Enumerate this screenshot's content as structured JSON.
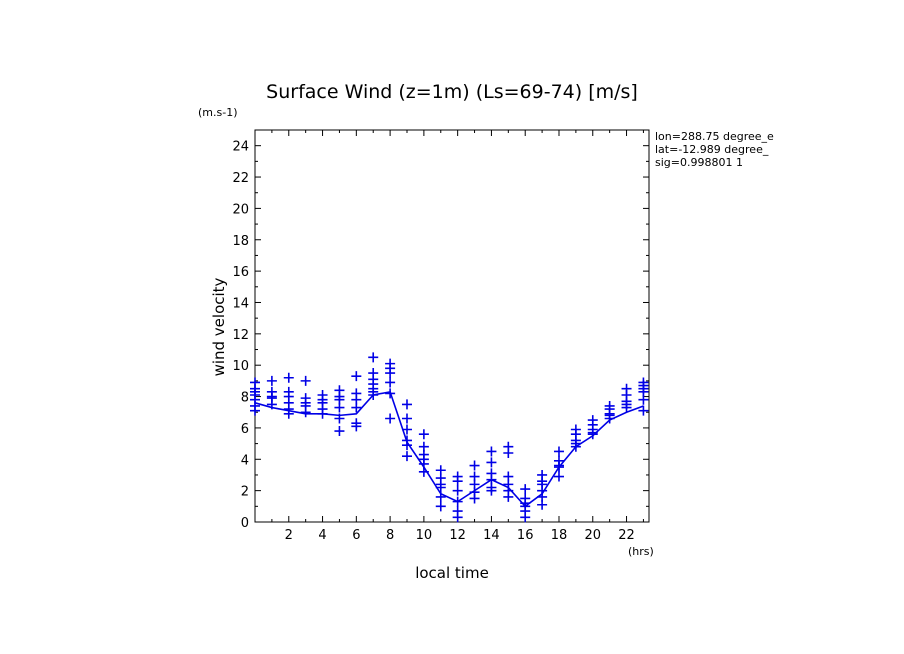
{
  "chart_data": {
    "type": "line",
    "title": "Surface Wind (z=1m) (Ls=69-74) [m/s]",
    "y_unit": "(m.s-1)",
    "x_unit": "(hrs)",
    "xlabel": "local time",
    "ylabel": "wind velocity",
    "xlim": [
      0,
      23.33
    ],
    "ylim": [
      0,
      25
    ],
    "x_ticks": [
      2,
      4,
      6,
      8,
      10,
      12,
      14,
      16,
      18,
      20,
      22
    ],
    "y_ticks": [
      0,
      2,
      4,
      6,
      8,
      10,
      12,
      14,
      16,
      18,
      20,
      22,
      24
    ],
    "info_lines": [
      "lon=288.75 degree_e",
      "lat=-12.989 degree_",
      "sig=0.998801 1"
    ],
    "color": "#0000e6",
    "series": [
      {
        "x": [
          0.0,
          1.0,
          2.0,
          3.0,
          4.0,
          5.0,
          6.0,
          7.0,
          8.0,
          9.0,
          10.0,
          11.0,
          12.0,
          13.0,
          14.0,
          15.0,
          16.0,
          17.0,
          18.0,
          19.0,
          20.0,
          21.0,
          22.0,
          23.0
        ],
        "y": [
          7.6,
          7.3,
          7.1,
          6.9,
          6.9,
          6.8,
          6.9,
          8.1,
          8.3,
          5.1,
          3.5,
          1.8,
          1.3,
          2.0,
          2.7,
          2.2,
          1.0,
          1.8,
          3.5,
          4.8,
          5.5,
          6.5,
          7.0,
          7.4
        ]
      },
      {
        "x": [
          0.0,
          0.0,
          0.0,
          0.0,
          0.0,
          0.0,
          0.0,
          1.0,
          1.0,
          1.0,
          1.0,
          1.0,
          2.0,
          2.0,
          2.0,
          2.0,
          2.0,
          2.0,
          3.0,
          3.0,
          3.0,
          3.0,
          3.0,
          4.0,
          4.0,
          4.0,
          4.0,
          4.0,
          5.0,
          5.0,
          5.0,
          5.0,
          5.0,
          5.0,
          6.0,
          6.0,
          6.0,
          6.0,
          6.0,
          6.0,
          7.0,
          7.0,
          7.0,
          7.0,
          7.0,
          7.0,
          7.0,
          8.0,
          8.0,
          8.0,
          8.0,
          8.0,
          8.0,
          9.0,
          9.0,
          9.0,
          9.0,
          9.0,
          9.0,
          10.0,
          10.0,
          10.0,
          10.0,
          10.0,
          10.0,
          11.0,
          11.0,
          11.0,
          11.0,
          11.0,
          11.0,
          12.0,
          12.0,
          12.0,
          12.0,
          12.0,
          12.0,
          13.0,
          13.0,
          13.0,
          13.0,
          13.0,
          14.0,
          14.0,
          14.0,
          14.0,
          14.0,
          14.0,
          15.0,
          15.0,
          15.0,
          15.0,
          15.0,
          15.0,
          16.0,
          16.0,
          16.0,
          16.0,
          16.0,
          16.0,
          17.0,
          17.0,
          17.0,
          17.0,
          17.0,
          17.0,
          18.0,
          18.0,
          18.0,
          18.0,
          18.0,
          19.0,
          19.0,
          19.0,
          19.0,
          19.0,
          20.0,
          20.0,
          20.0,
          20.0,
          20.0,
          21.0,
          21.0,
          21.0,
          21.0,
          21.0,
          22.0,
          22.0,
          22.0,
          22.0,
          22.0,
          23.0,
          23.0,
          23.0,
          23.0,
          23.0,
          23.0
        ],
        "y": [
          8.9,
          8.5,
          8.3,
          8.1,
          7.8,
          7.4,
          7.1,
          9.0,
          8.3,
          8.0,
          7.9,
          7.5,
          9.2,
          8.3,
          8.0,
          7.6,
          7.2,
          6.9,
          9.0,
          7.9,
          7.6,
          7.4,
          7.0,
          8.1,
          7.8,
          7.6,
          7.2,
          6.9,
          8.4,
          8.0,
          7.8,
          7.3,
          6.6,
          5.8,
          9.3,
          8.2,
          7.8,
          7.3,
          6.3,
          6.1,
          10.5,
          9.5,
          9.1,
          8.8,
          8.5,
          8.3,
          8.1,
          10.1,
          9.8,
          9.5,
          8.9,
          8.2,
          6.6,
          7.5,
          6.6,
          5.9,
          5.2,
          4.9,
          4.2,
          5.6,
          4.8,
          4.3,
          4.0,
          3.7,
          3.2,
          3.3,
          2.8,
          2.4,
          2.2,
          1.6,
          1.0,
          2.9,
          2.6,
          2.0,
          1.3,
          0.7,
          0.3,
          3.6,
          2.9,
          2.4,
          1.9,
          1.5,
          4.5,
          3.8,
          3.1,
          2.7,
          2.2,
          2.0,
          4.8,
          4.4,
          2.9,
          2.4,
          2.0,
          1.6,
          2.1,
          1.5,
          1.2,
          1.0,
          0.7,
          0.3,
          3.0,
          2.6,
          2.4,
          2.0,
          1.6,
          1.1,
          4.5,
          3.9,
          3.6,
          3.5,
          2.9,
          5.9,
          5.6,
          5.2,
          5.0,
          4.8,
          6.5,
          6.2,
          5.9,
          5.7,
          5.6,
          7.4,
          7.2,
          6.9,
          6.8,
          6.6,
          8.5,
          8.1,
          7.7,
          7.5,
          7.3,
          8.9,
          8.7,
          8.5,
          8.3,
          7.8,
          7.1
        ]
      }
    ]
  }
}
